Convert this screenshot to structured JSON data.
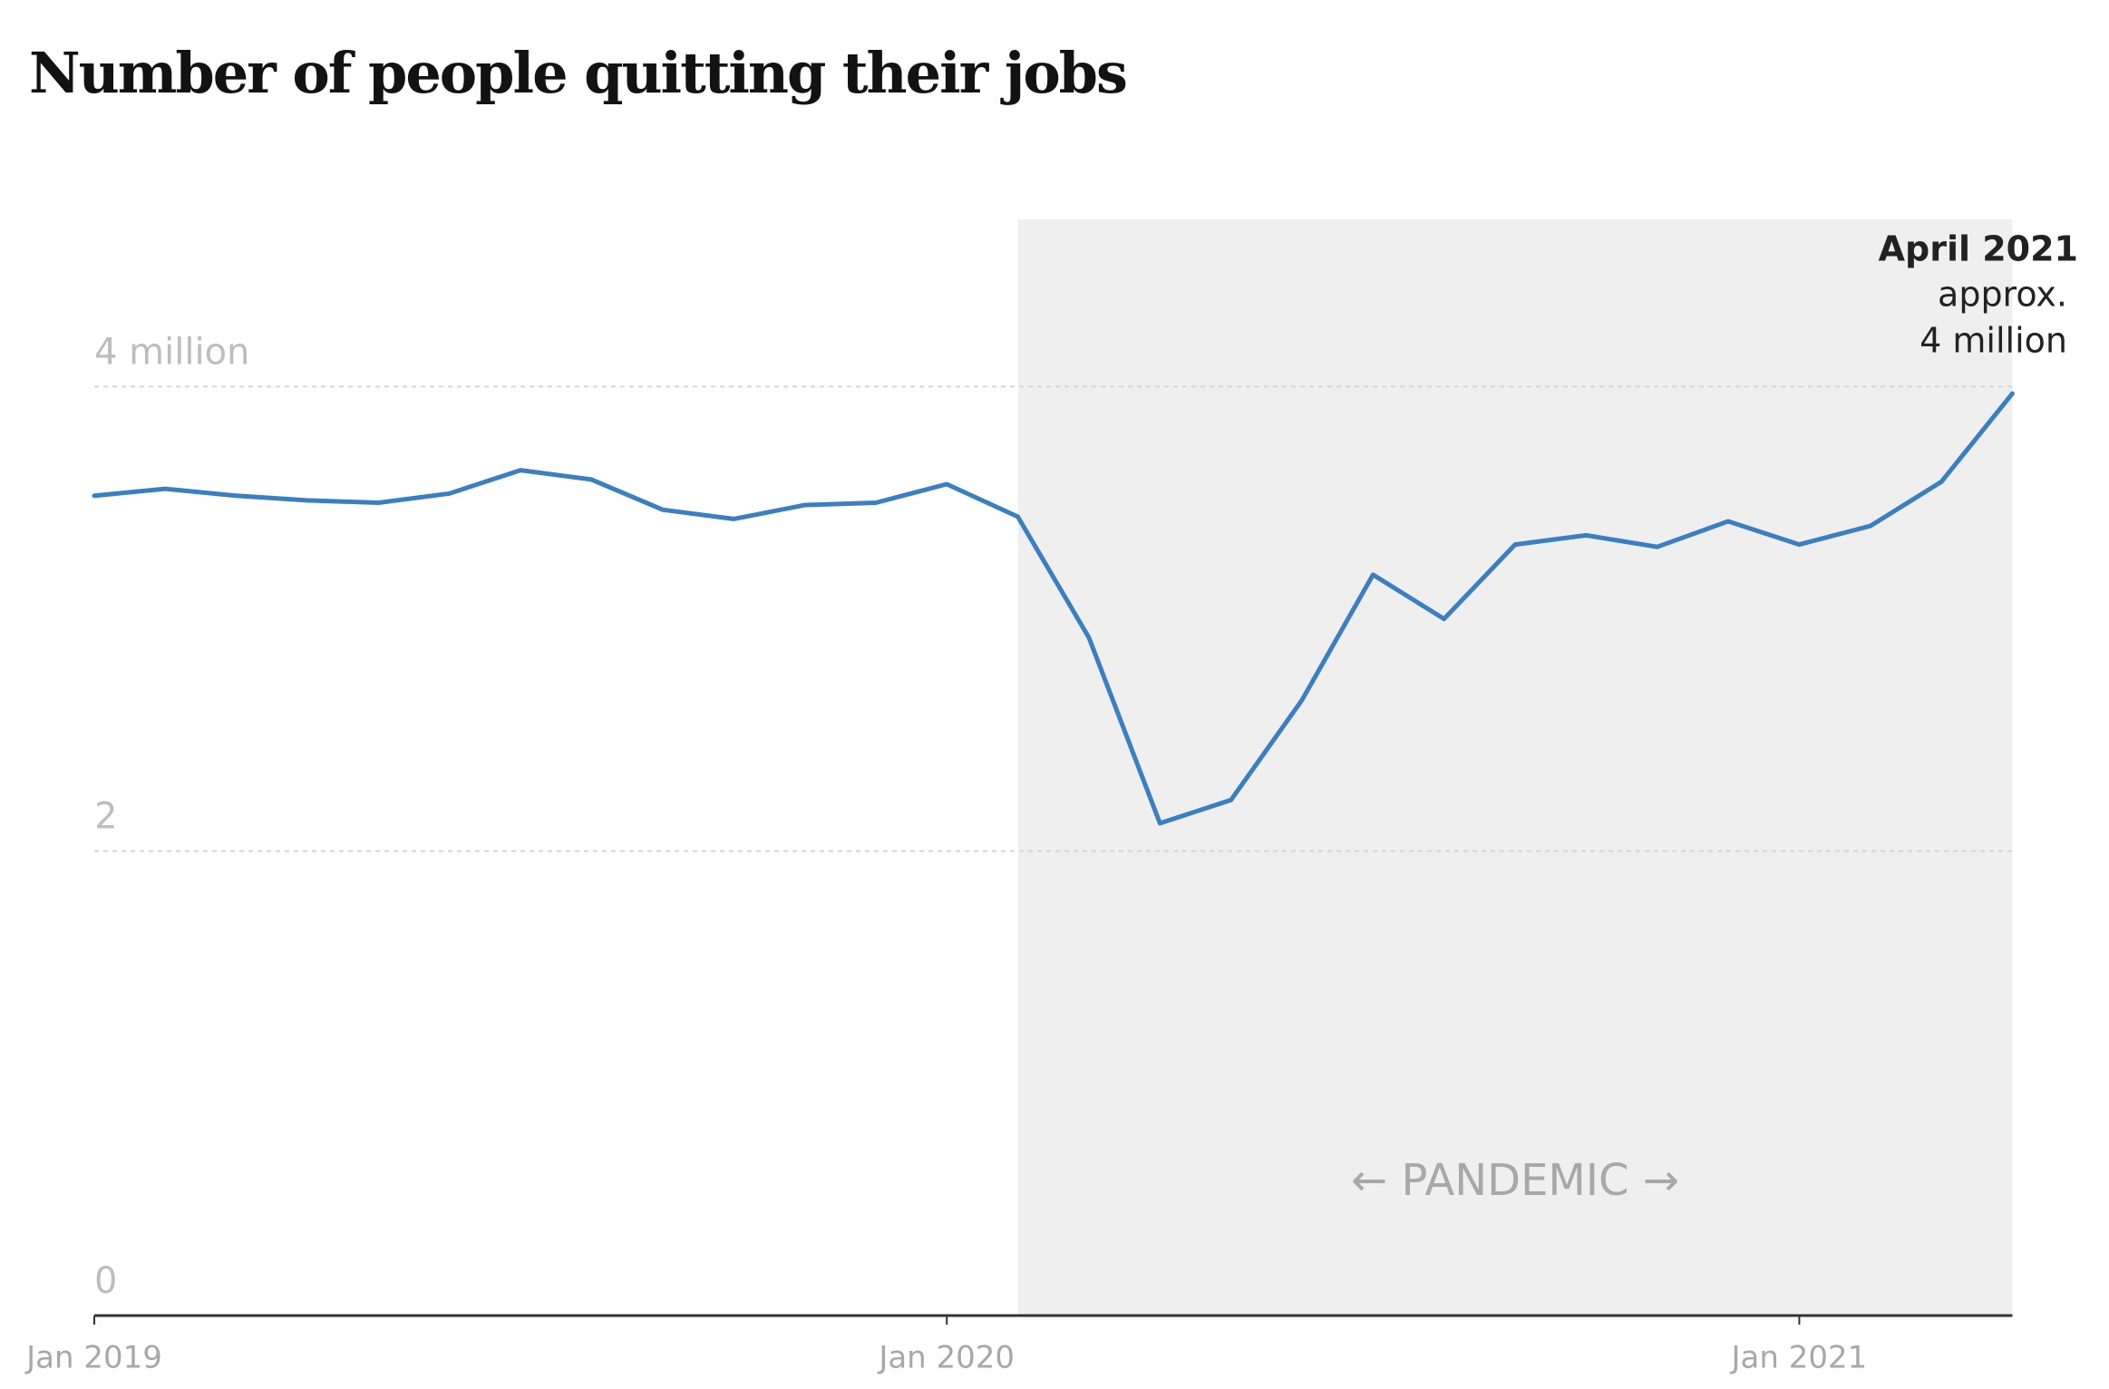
{
  "chart_data": {
    "type": "line",
    "title": "Number of people quitting their jobs",
    "categories": [
      "Jan 2019",
      null,
      null,
      null,
      null,
      null,
      null,
      null,
      null,
      null,
      null,
      null,
      "Jan 2020",
      null,
      null,
      null,
      null,
      null,
      null,
      null,
      null,
      null,
      null,
      null,
      "Jan 2021",
      null,
      null,
      null
    ],
    "series": [
      {
        "color": "#3a7fc1",
        "values": [
          3.53,
          3.56,
          3.53,
          3.51,
          3.5,
          3.54,
          3.64,
          3.6,
          3.47,
          3.43,
          3.49,
          3.5,
          3.58,
          3.44,
          2.92,
          2.12,
          2.22,
          2.65,
          3.19,
          3.0,
          3.32,
          3.36,
          3.31,
          3.42,
          3.32,
          3.4,
          3.59,
          3.97
        ]
      }
    ],
    "ylim": [
      0,
      4.72
    ],
    "yticks": [
      0,
      2,
      {
        "value": 4,
        "label": "4 million"
      }
    ],
    "grid": true,
    "shade_label": "← PANDEMIC →",
    "callout": {
      "title": "April 2021",
      "lines": [
        "approx.",
        "4 million"
      ]
    }
  }
}
